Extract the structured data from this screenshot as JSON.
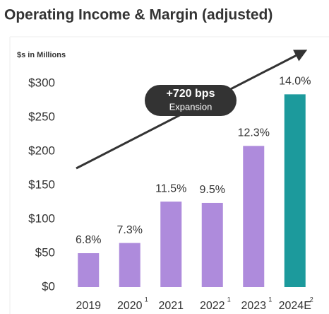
{
  "chart_data": {
    "type": "bar",
    "title": "Operating Income & Margin (adjusted)",
    "subtitle": "$s in Millions",
    "categories": [
      "2019",
      "2020",
      "2021",
      "2022",
      "2023",
      "2024E"
    ],
    "footnotes": [
      null,
      "1",
      null,
      "1",
      "1",
      "2"
    ],
    "values": [
      50,
      65,
      126,
      124,
      208,
      284
    ],
    "margin_labels": [
      "6.8%",
      "7.3%",
      "11.5%",
      "9.5%",
      "12.3%",
      "14.0%"
    ],
    "colors": [
      "#ae8bdc",
      "#ae8bdc",
      "#ae8bdc",
      "#ae8bdc",
      "#ae8bdc",
      "#1c9a9c"
    ],
    "ylim": [
      0,
      300
    ],
    "yticks": [
      {
        "value": 0,
        "label": "$0"
      },
      {
        "value": 50,
        "label": "$50"
      },
      {
        "value": 100,
        "label": "$100"
      },
      {
        "value": 150,
        "label": "$150"
      },
      {
        "value": 200,
        "label": "$200"
      },
      {
        "value": 250,
        "label": "$250"
      },
      {
        "value": 300,
        "label": "$300"
      }
    ],
    "annotation": {
      "title": "+720 bps",
      "text": "Expansion"
    }
  }
}
